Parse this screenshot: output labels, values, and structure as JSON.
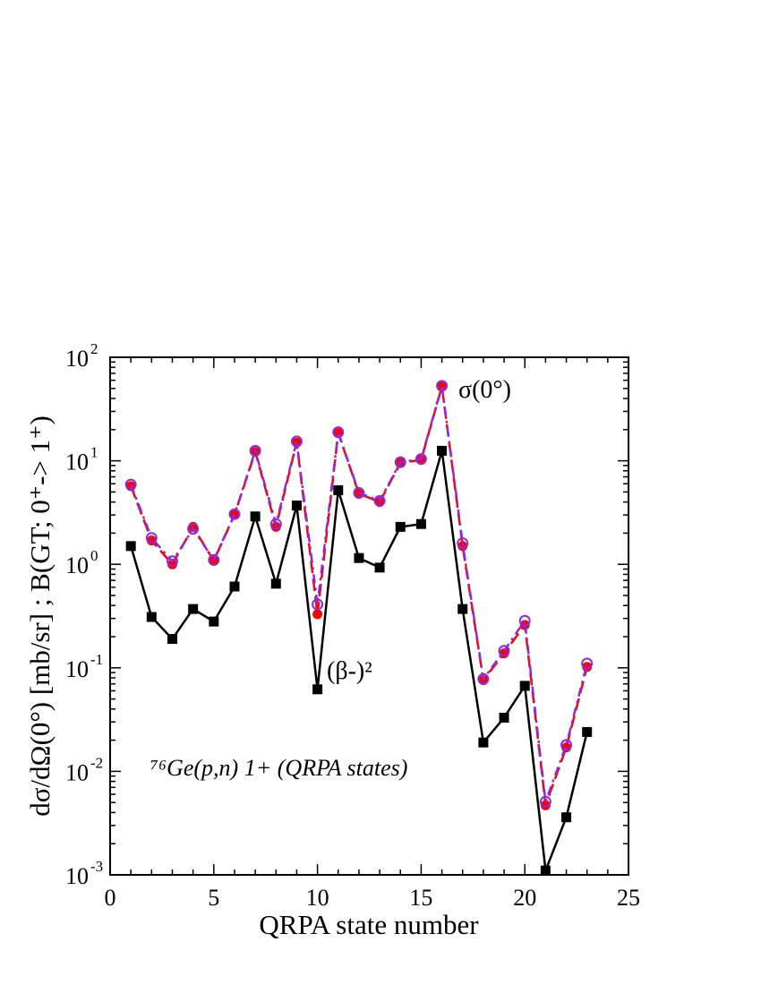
{
  "chart_data": {
    "type": "line",
    "xlabel": "QRPA state number",
    "ylabel": "dσ/dΩ(0°) [mb/sr] ; B(GT; 0⁺-> 1⁺)",
    "xlim": [
      0,
      25
    ],
    "ylim": [
      0.001,
      100
    ],
    "yscale": "log",
    "x_ticks": [
      "0",
      "5",
      "10",
      "15",
      "20",
      "25"
    ],
    "y_ticks": [
      {
        "base": "10",
        "exp": "-3"
      },
      {
        "base": "10",
        "exp": "-2"
      },
      {
        "base": "10",
        "exp": "-1"
      },
      {
        "base": "10",
        "exp": "0"
      },
      {
        "base": "10",
        "exp": "1"
      },
      {
        "base": "10",
        "exp": "2"
      }
    ],
    "grid": false,
    "annotations": {
      "sigma_label": "σ(0°)",
      "beta_label": "(β-)²",
      "reaction_label": "⁷⁶Ge(p,n) 1+ (QRPA states)"
    },
    "x": [
      1,
      2,
      3,
      4,
      5,
      6,
      7,
      8,
      9,
      10,
      11,
      12,
      13,
      14,
      15,
      16,
      17,
      18,
      19,
      20,
      21,
      22,
      23
    ],
    "series": [
      {
        "name": "",
        "style": "solid",
        "marker": "filled-square",
        "color": "#000000",
        "values": [
          1.5,
          0.31,
          0.19,
          0.37,
          0.28,
          0.61,
          2.9,
          0.65,
          3.7,
          0.062,
          5.2,
          1.15,
          0.93,
          2.3,
          2.45,
          12.5,
          0.37,
          0.019,
          0.033,
          0.067,
          0.0011,
          0.0036,
          0.024
        ]
      },
      {
        "name": "",
        "style": "dashed",
        "marker": "filled-circle",
        "color": "#ff0000",
        "values": [
          5.7,
          1.7,
          1.0,
          2.3,
          1.08,
          3.0,
          12.2,
          2.3,
          15.0,
          0.33,
          18.5,
          4.8,
          4.0,
          9.5,
          10.2,
          52.0,
          1.5,
          0.076,
          0.138,
          0.26,
          0.0047,
          0.017,
          0.102
        ]
      },
      {
        "name": "",
        "style": "dash-dot",
        "marker": "open-circle",
        "color": "#8a2be2",
        "values": [
          5.9,
          1.8,
          1.07,
          2.2,
          1.1,
          3.05,
          12.5,
          2.45,
          15.4,
          0.41,
          18.9,
          4.9,
          4.1,
          9.7,
          10.4,
          53.0,
          1.6,
          0.078,
          0.146,
          0.285,
          0.0051,
          0.018,
          0.11
        ]
      }
    ]
  }
}
